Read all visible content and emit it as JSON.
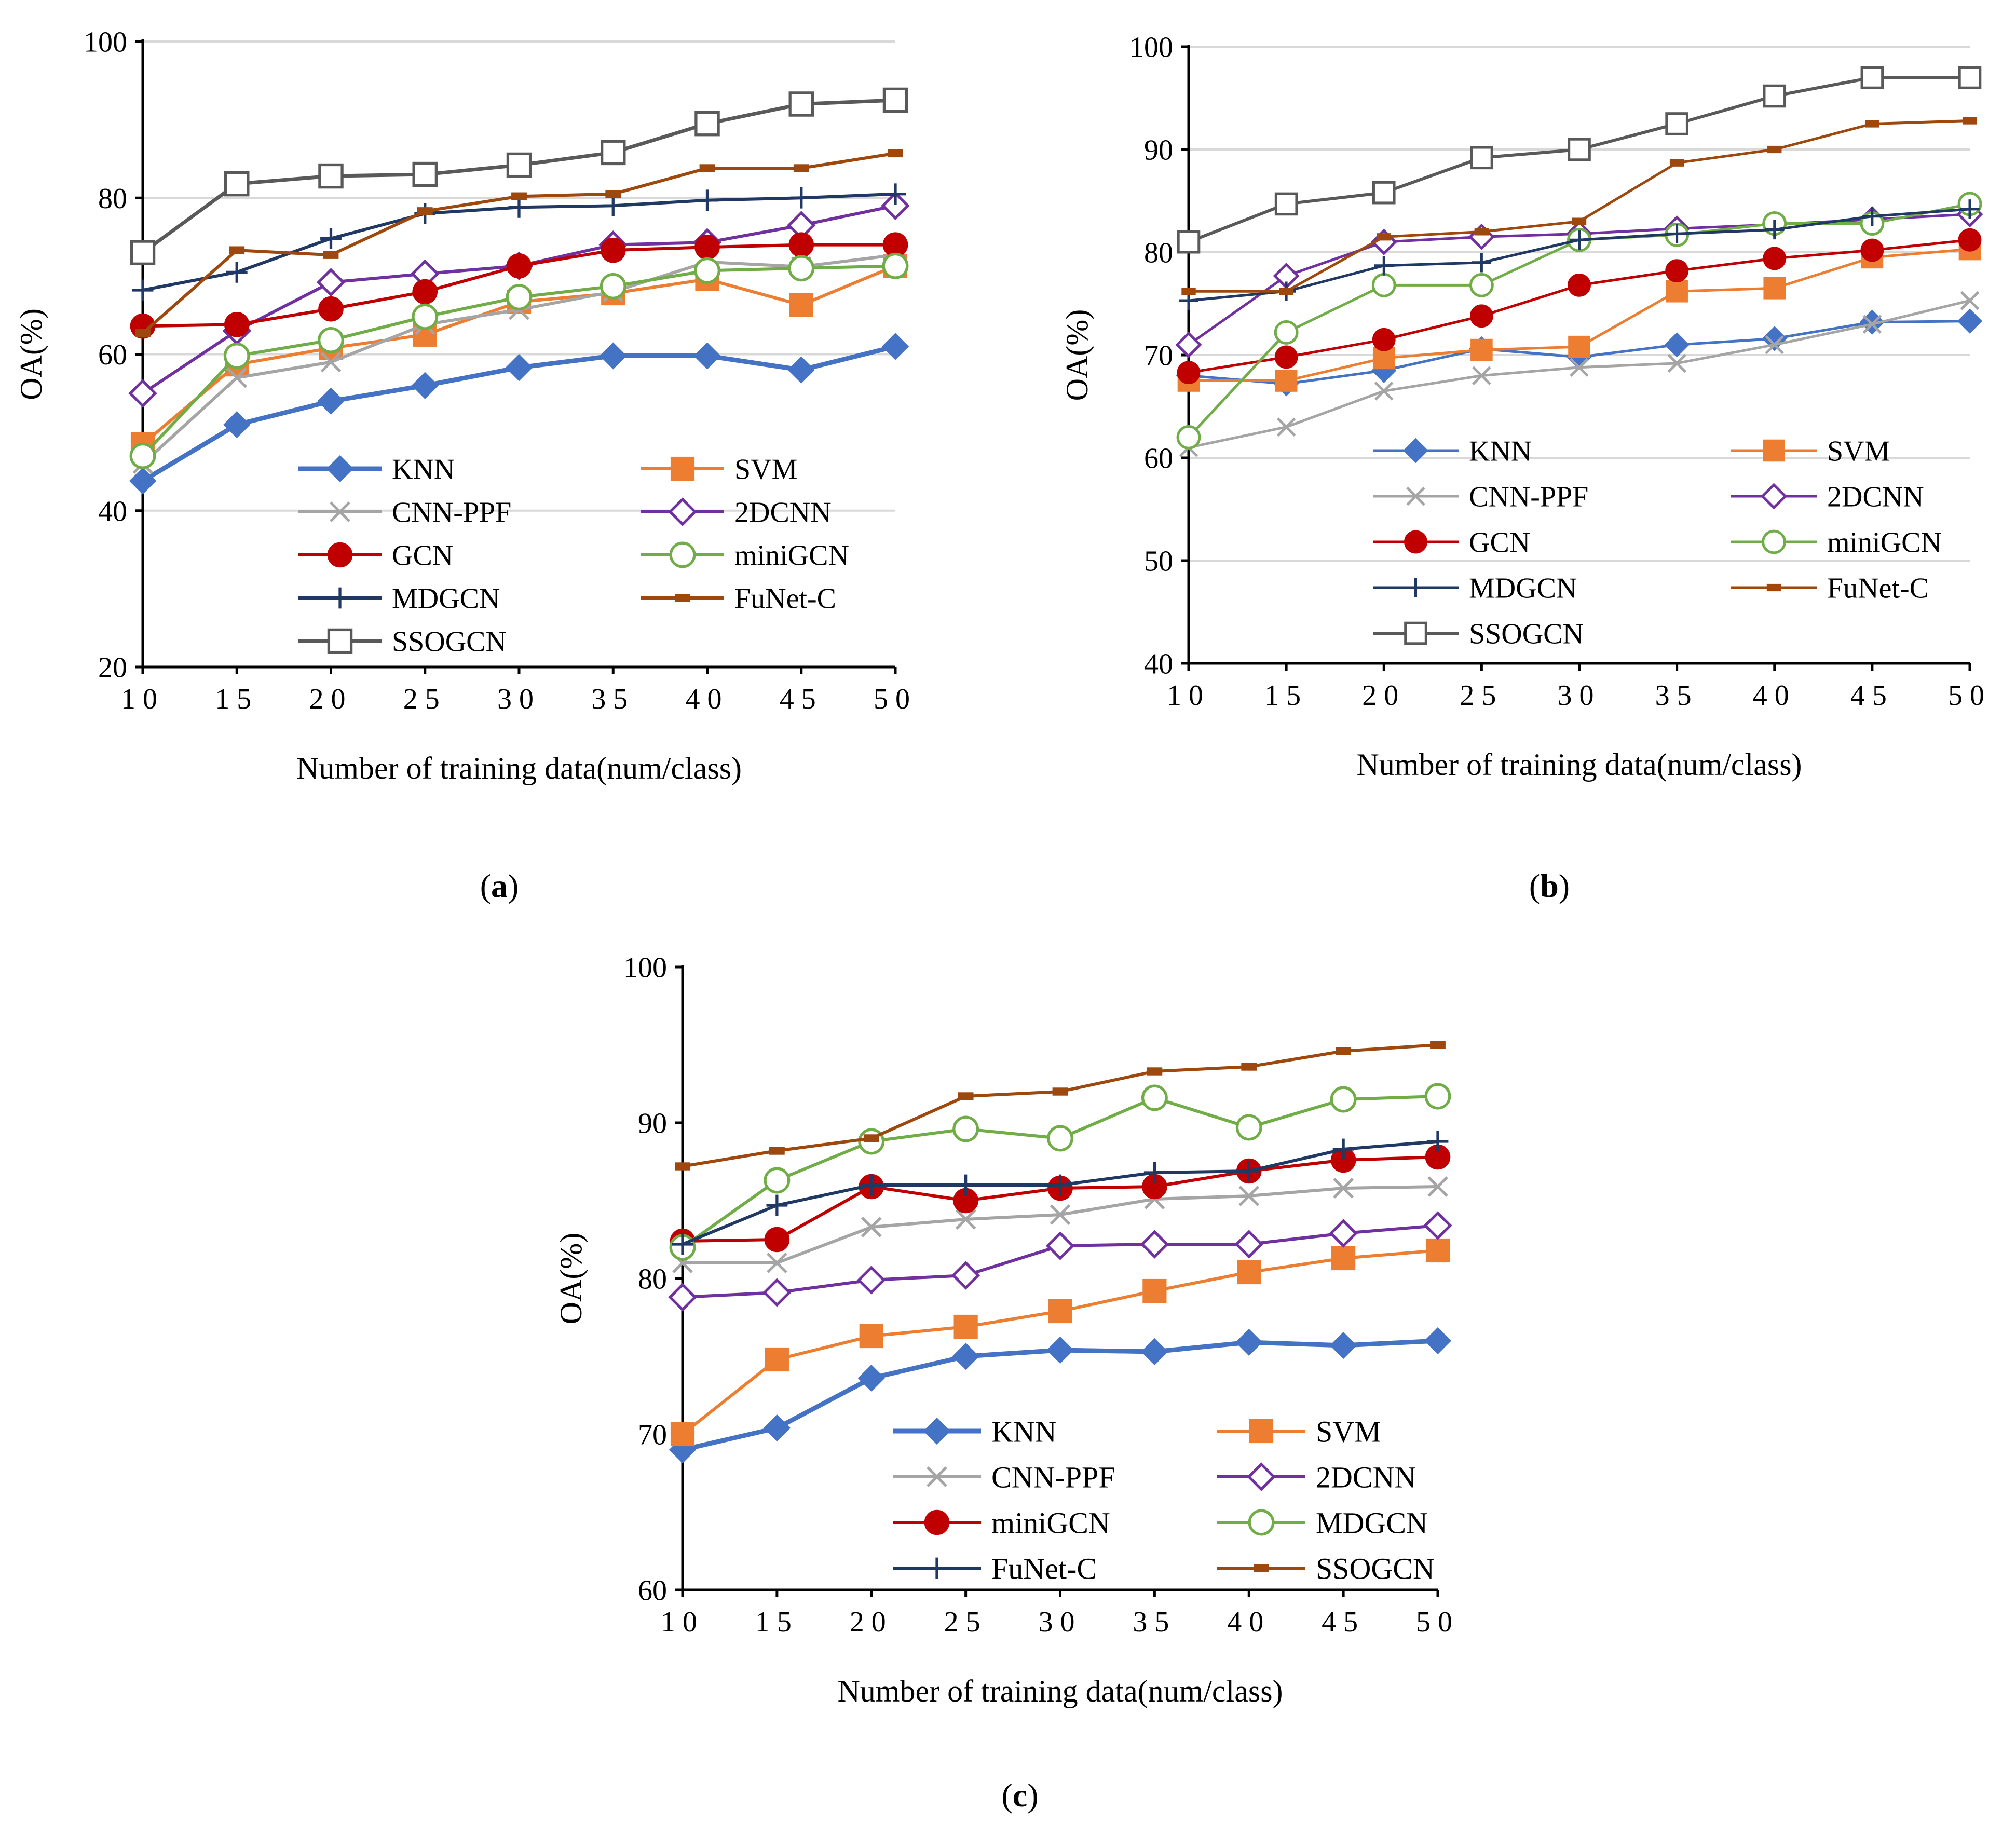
{
  "figure": {
    "panel_labels": [
      "a",
      "b",
      "c"
    ]
  },
  "colors": {
    "KNN": "#4472C4",
    "SVM": "#ED7D31",
    "CNN-PPF": "#A5A5A5",
    "2DCNN": "#7030A0",
    "GCN": "#C00000",
    "miniGCN": "#70AD47",
    "MDGCN": "#1F3864",
    "FuNet-C": "#9E480E",
    "SSOGCN": "#595959",
    "axis": "#000000",
    "grid": "#D9D9D9"
  },
  "chart_data": [
    {
      "id": "a",
      "type": "line",
      "xlabel": "Number of training data(num/class)",
      "ylabel": "OA(%)",
      "x": [
        10,
        15,
        20,
        25,
        30,
        35,
        40,
        45,
        50
      ],
      "ylim": [
        20,
        100
      ],
      "yticks": [
        20,
        40,
        60,
        80,
        100
      ],
      "grid": true,
      "legend": "lower-right, two columns",
      "series": [
        {
          "name": "KNN",
          "marker": "diamond-filled",
          "color": "#4472C4",
          "width": 9,
          "values": [
            43.8,
            51.0,
            54.0,
            56.0,
            58.3,
            59.8,
            59.8,
            58.0,
            61.0
          ]
        },
        {
          "name": "SVM",
          "marker": "square-filled",
          "color": "#ED7D31",
          "width": 6,
          "values": [
            48.5,
            58.7,
            60.8,
            62.5,
            66.7,
            67.8,
            69.6,
            66.3,
            71.3
          ]
        },
        {
          "name": "CNN-PPF",
          "marker": "x",
          "color": "#A5A5A5",
          "width": 6,
          "values": [
            46.0,
            57.0,
            59.0,
            63.8,
            65.7,
            68.0,
            71.8,
            71.2,
            72.7
          ]
        },
        {
          "name": "2DCNN",
          "marker": "diamond-open",
          "color": "#7030A0",
          "width": 6,
          "values": [
            55.0,
            63.0,
            69.2,
            70.3,
            71.3,
            74.0,
            74.3,
            76.5,
            79.0
          ]
        },
        {
          "name": "GCN",
          "marker": "circle-filled",
          "color": "#C00000",
          "width": 6,
          "values": [
            63.6,
            63.8,
            65.8,
            68.0,
            71.3,
            73.3,
            73.7,
            74.0,
            74.0
          ]
        },
        {
          "name": "miniGCN",
          "marker": "circle-open",
          "color": "#70AD47",
          "width": 6,
          "values": [
            47.0,
            59.8,
            61.8,
            64.8,
            67.3,
            68.7,
            70.7,
            71.0,
            71.3
          ]
        },
        {
          "name": "MDGCN",
          "marker": "plus",
          "color": "#1F3864",
          "width": 6,
          "values": [
            68.2,
            70.5,
            74.8,
            78.0,
            78.8,
            79.0,
            79.7,
            80.0,
            80.5
          ]
        },
        {
          "name": "FuNet-C",
          "marker": "dash",
          "color": "#9E480E",
          "width": 6,
          "values": [
            62.7,
            73.3,
            72.7,
            78.3,
            80.2,
            80.5,
            83.8,
            83.8,
            85.7
          ]
        },
        {
          "name": "SSOGCN",
          "marker": "square-open",
          "color": "#595959",
          "width": 7,
          "values": [
            73.0,
            81.8,
            82.8,
            83.0,
            84.2,
            85.8,
            89.5,
            92.0,
            92.5
          ]
        }
      ]
    },
    {
      "id": "b",
      "type": "line",
      "xlabel": "Number of training data(num/class)",
      "ylabel": "OA(%)",
      "x": [
        10,
        15,
        20,
        25,
        30,
        35,
        40,
        45,
        50
      ],
      "ylim": [
        40,
        100
      ],
      "yticks": [
        40,
        50,
        60,
        70,
        80,
        90,
        100
      ],
      "grid": true,
      "legend": "lower-right, two columns",
      "series": [
        {
          "name": "KNN",
          "marker": "diamond-filled",
          "color": "#4472C4",
          "width": 5,
          "values": [
            68.0,
            67.2,
            68.5,
            70.6,
            69.8,
            71.0,
            71.6,
            73.2,
            73.3
          ]
        },
        {
          "name": "SVM",
          "marker": "square-filled",
          "color": "#ED7D31",
          "width": 5,
          "values": [
            67.5,
            67.5,
            69.7,
            70.5,
            70.8,
            76.2,
            76.5,
            79.5,
            80.3
          ]
        },
        {
          "name": "CNN-PPF",
          "marker": "x",
          "color": "#A5A5A5",
          "width": 5,
          "values": [
            61.0,
            63.0,
            66.5,
            68.0,
            68.8,
            69.2,
            71.0,
            73.0,
            75.3
          ]
        },
        {
          "name": "2DCNN",
          "marker": "diamond-open",
          "color": "#7030A0",
          "width": 5,
          "values": [
            71.0,
            77.7,
            81.0,
            81.5,
            81.8,
            82.3,
            82.7,
            83.2,
            83.7
          ]
        },
        {
          "name": "GCN",
          "marker": "circle-filled",
          "color": "#C00000",
          "width": 5,
          "values": [
            68.3,
            69.8,
            71.5,
            73.8,
            76.8,
            78.2,
            79.4,
            80.2,
            81.2
          ]
        },
        {
          "name": "miniGCN",
          "marker": "circle-open",
          "color": "#70AD47",
          "width": 5,
          "values": [
            62.0,
            72.2,
            76.8,
            76.8,
            81.2,
            81.7,
            82.8,
            82.8,
            84.7
          ]
        },
        {
          "name": "MDGCN",
          "marker": "plus",
          "color": "#1F3864",
          "width": 5,
          "values": [
            75.3,
            76.2,
            78.7,
            79.0,
            81.2,
            81.8,
            82.2,
            83.5,
            84.2
          ]
        },
        {
          "name": "FuNet-C",
          "marker": "dash",
          "color": "#9E480E",
          "width": 5,
          "values": [
            76.2,
            76.2,
            81.5,
            82.0,
            83.0,
            88.7,
            90.0,
            92.5,
            92.8
          ]
        },
        {
          "name": "SSOGCN",
          "marker": "square-open",
          "color": "#595959",
          "width": 6,
          "values": [
            81.0,
            84.7,
            85.8,
            89.2,
            90.0,
            92.5,
            95.2,
            97.0,
            97.0
          ]
        }
      ]
    },
    {
      "id": "c",
      "type": "line",
      "xlabel": "Number of training data(num/class)",
      "ylabel": "OA(%)",
      "x": [
        10,
        15,
        20,
        25,
        30,
        35,
        40,
        45,
        50
      ],
      "ylim": [
        60,
        100
      ],
      "yticks": [
        60,
        70,
        80,
        90,
        100
      ],
      "grid": false,
      "legend": "lower-right, two columns",
      "series": [
        {
          "name": "KNN",
          "marker": "diamond-filled",
          "color": "#4472C4",
          "width": 9,
          "values": [
            69.0,
            70.4,
            73.6,
            75.0,
            75.4,
            75.3,
            75.9,
            75.7,
            76.0
          ]
        },
        {
          "name": "SVM",
          "marker": "square-filled",
          "color": "#ED7D31",
          "width": 6,
          "values": [
            70.0,
            74.8,
            76.3,
            76.9,
            77.9,
            79.2,
            80.4,
            81.3,
            81.8
          ]
        },
        {
          "name": "CNN-PPF",
          "marker": "x",
          "color": "#A5A5A5",
          "width": 6,
          "values": [
            81.0,
            81.0,
            83.3,
            83.8,
            84.1,
            85.1,
            85.3,
            85.8,
            85.9
          ]
        },
        {
          "name": "2DCNN",
          "marker": "diamond-open",
          "color": "#7030A0",
          "width": 6,
          "values": [
            78.8,
            79.1,
            79.9,
            80.2,
            82.1,
            82.2,
            82.2,
            82.9,
            83.4
          ]
        },
        {
          "name": "miniGCN",
          "marker": "circle-filled",
          "color": "#C00000",
          "width": 6,
          "values": [
            82.4,
            82.5,
            85.9,
            85.0,
            85.8,
            85.9,
            86.9,
            87.6,
            87.8
          ]
        },
        {
          "name": "MDGCN",
          "marker": "circle-open",
          "color": "#70AD47",
          "width": 6,
          "values": [
            82.0,
            86.3,
            88.8,
            89.6,
            89.0,
            91.6,
            89.7,
            91.5,
            91.7
          ]
        },
        {
          "name": "FuNet-C",
          "marker": "plus",
          "color": "#1F3864",
          "width": 6,
          "values": [
            82.2,
            84.7,
            86.0,
            86.0,
            86.0,
            86.8,
            86.9,
            88.3,
            88.8
          ]
        },
        {
          "name": "SSOGCN",
          "marker": "dash",
          "color": "#9E480E",
          "width": 6,
          "values": [
            87.2,
            88.2,
            89.0,
            91.7,
            92.0,
            93.3,
            93.6,
            94.6,
            95.0
          ]
        }
      ]
    }
  ]
}
